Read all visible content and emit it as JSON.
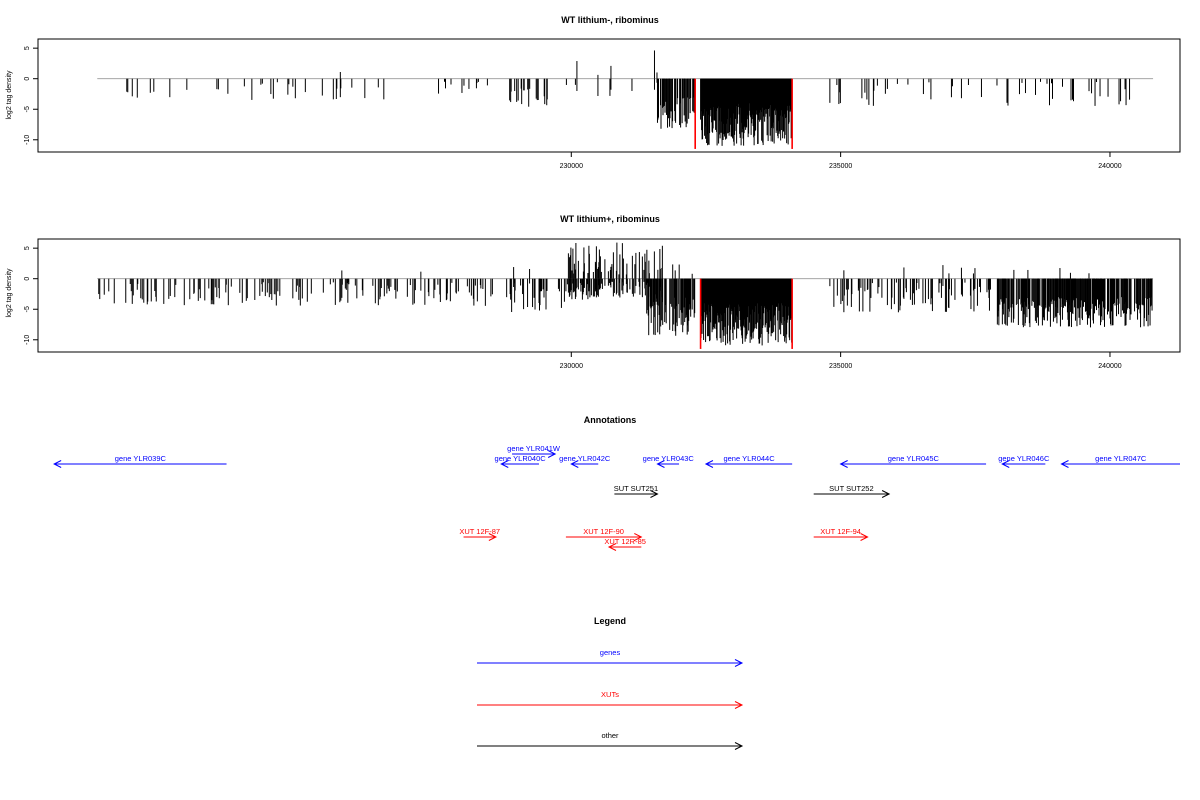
{
  "chart_data": [
    {
      "type": "bar",
      "title": "WT lithium-, ribominus",
      "ylabel": "log2 tag density",
      "xlim": [
        220100,
        241300
      ],
      "ylim": [
        -12,
        6.5
      ],
      "x_ticks": [
        230000,
        235000,
        240000
      ],
      "y_ticks": [
        5,
        0,
        -5,
        -10
      ],
      "baseline_range": [
        221200,
        240800
      ],
      "series": [
        {
          "color": "#000000",
          "segments": [
            {
              "from": 221200,
              "to": 222900,
              "min": 1.5,
              "max": 4,
              "pos_max": 0.6,
              "pos_prob": 0.02,
              "density": 0.07
            },
            {
              "from": 223300,
              "to": 226900,
              "min": 0.5,
              "max": 3.5,
              "pos_max": 1.5,
              "pos_prob": 0.02,
              "density": 0.06
            },
            {
              "from": 227100,
              "to": 228600,
              "min": 0.5,
              "max": 2.5,
              "pos_max": 2,
              "pos_prob": 0.05,
              "density": 0.04
            },
            {
              "from": 228800,
              "to": 229600,
              "min": 1.5,
              "max": 5,
              "pos_max": 0.5,
              "pos_prob": 0.02,
              "density": 0.25
            },
            {
              "from": 229900,
              "to": 231600,
              "min": 0.5,
              "max": 3,
              "pos_max": 4.8,
              "pos_prob": 0.35,
              "density": 0.06
            },
            {
              "from": 231600,
              "to": 232300,
              "min": 3,
              "max": 8.5,
              "pos_max": 0,
              "pos_prob": 0,
              "density": 0.6
            },
            {
              "from": 232400,
              "to": 234100,
              "min": 4,
              "max": 11,
              "pos_max": 0,
              "pos_prob": 0,
              "density": 1.0
            },
            {
              "from": 234800,
              "to": 240800,
              "min": 0.5,
              "max": 4.5,
              "pos_max": 1.5,
              "pos_prob": 0.01,
              "density": 0.08
            }
          ]
        },
        {
          "color": "#ff0000",
          "positions": [
            232300,
            234100
          ],
          "values": [
            -11.5,
            -11.5
          ]
        }
      ]
    },
    {
      "type": "bar",
      "title": "WT lithium+, ribominus",
      "ylabel": "log2 tag density",
      "xlim": [
        220100,
        241300
      ],
      "ylim": [
        -12,
        6.5
      ],
      "x_ticks": [
        230000,
        235000,
        240000
      ],
      "y_ticks": [
        5,
        0,
        -5,
        -10
      ],
      "baseline_range": [
        221200,
        240800
      ],
      "series": [
        {
          "color": "#000000",
          "segments": [
            {
              "from": 221200,
              "to": 228600,
              "min": 0.5,
              "max": 4.5,
              "pos_max": 1.5,
              "pos_prob": 0.03,
              "density": 0.18
            },
            {
              "from": 228800,
              "to": 229900,
              "min": 0.5,
              "max": 5.5,
              "pos_max": 2.5,
              "pos_prob": 0.12,
              "density": 0.25
            },
            {
              "from": 229900,
              "to": 231700,
              "min": 0.5,
              "max": 3.5,
              "pos_max": 6,
              "pos_prob": 0.55,
              "density": 0.5
            },
            {
              "from": 231400,
              "to": 232300,
              "min": 3,
              "max": 9.5,
              "pos_max": 2.5,
              "pos_prob": 0.08,
              "density": 0.7
            },
            {
              "from": 232400,
              "to": 234100,
              "min": 4,
              "max": 11,
              "pos_max": 0,
              "pos_prob": 0,
              "density": 1.0
            },
            {
              "from": 234800,
              "to": 237800,
              "min": 0.5,
              "max": 5.5,
              "pos_max": 3,
              "pos_prob": 0.08,
              "density": 0.25
            },
            {
              "from": 237900,
              "to": 240800,
              "min": 3,
              "max": 8,
              "pos_max": 2,
              "pos_prob": 0.01,
              "density": 0.7
            }
          ]
        },
        {
          "color": "#ff0000",
          "positions": [
            232400,
            234100
          ],
          "values": [
            -11.5,
            -11.5
          ]
        }
      ]
    },
    {
      "type": "annotation-track",
      "title": "Annotations",
      "xlim": [
        220100,
        241300
      ],
      "features": [
        {
          "label": "gene YLR039C",
          "start": 220400,
          "end": 223600,
          "strand": "-",
          "row": 1,
          "color": "#0000ff"
        },
        {
          "label": "gene YLR040C",
          "start": 228700,
          "end": 229400,
          "strand": "-",
          "row": 1,
          "color": "#0000ff"
        },
        {
          "label": "gene YLR041W",
          "start": 228900,
          "end": 229700,
          "strand": "+",
          "row": 0,
          "color": "#0000ff"
        },
        {
          "label": "gene YLR042C",
          "start": 230000,
          "end": 230500,
          "strand": "-",
          "row": 1,
          "color": "#0000ff"
        },
        {
          "label": "gene YLR043C",
          "start": 231600,
          "end": 232000,
          "strand": "-",
          "row": 1,
          "color": "#0000ff"
        },
        {
          "label": "gene YLR044C",
          "start": 232500,
          "end": 234100,
          "strand": "-",
          "row": 1,
          "color": "#0000ff"
        },
        {
          "label": "gene YLR045C",
          "start": 235000,
          "end": 237700,
          "strand": "-",
          "row": 1,
          "color": "#0000ff"
        },
        {
          "label": "gene YLR046C",
          "start": 238000,
          "end": 238800,
          "strand": "-",
          "row": 1,
          "color": "#0000ff"
        },
        {
          "label": "gene YLR047C",
          "start": 239100,
          "end": 241300,
          "strand": "-",
          "row": 1,
          "color": "#0000ff"
        },
        {
          "label": "SUT SUT251",
          "start": 230800,
          "end": 231600,
          "strand": "+",
          "row": 2,
          "color": "#000000"
        },
        {
          "label": "SUT SUT252",
          "start": 234500,
          "end": 235900,
          "strand": "+",
          "row": 2,
          "color": "#000000"
        },
        {
          "label": "XUT 12F-87",
          "start": 228000,
          "end": 228600,
          "strand": "+",
          "row": 3,
          "color": "#ff0000"
        },
        {
          "label": "XUT 12F-90",
          "start": 229900,
          "end": 231300,
          "strand": "+",
          "row": 3,
          "color": "#ff0000"
        },
        {
          "label": "XUT 12R-85",
          "start": 230700,
          "end": 231300,
          "strand": "-",
          "row": 4,
          "color": "#ff0000"
        },
        {
          "label": "XUT 12F-94",
          "start": 234500,
          "end": 235500,
          "strand": "+",
          "row": 3,
          "color": "#ff0000"
        }
      ]
    },
    {
      "type": "legend",
      "title": "Legend",
      "items": [
        {
          "label": "genes",
          "color": "#0000ff"
        },
        {
          "label": "XUTs",
          "color": "#ff0000"
        },
        {
          "label": "other",
          "color": "#000000"
        }
      ]
    }
  ]
}
